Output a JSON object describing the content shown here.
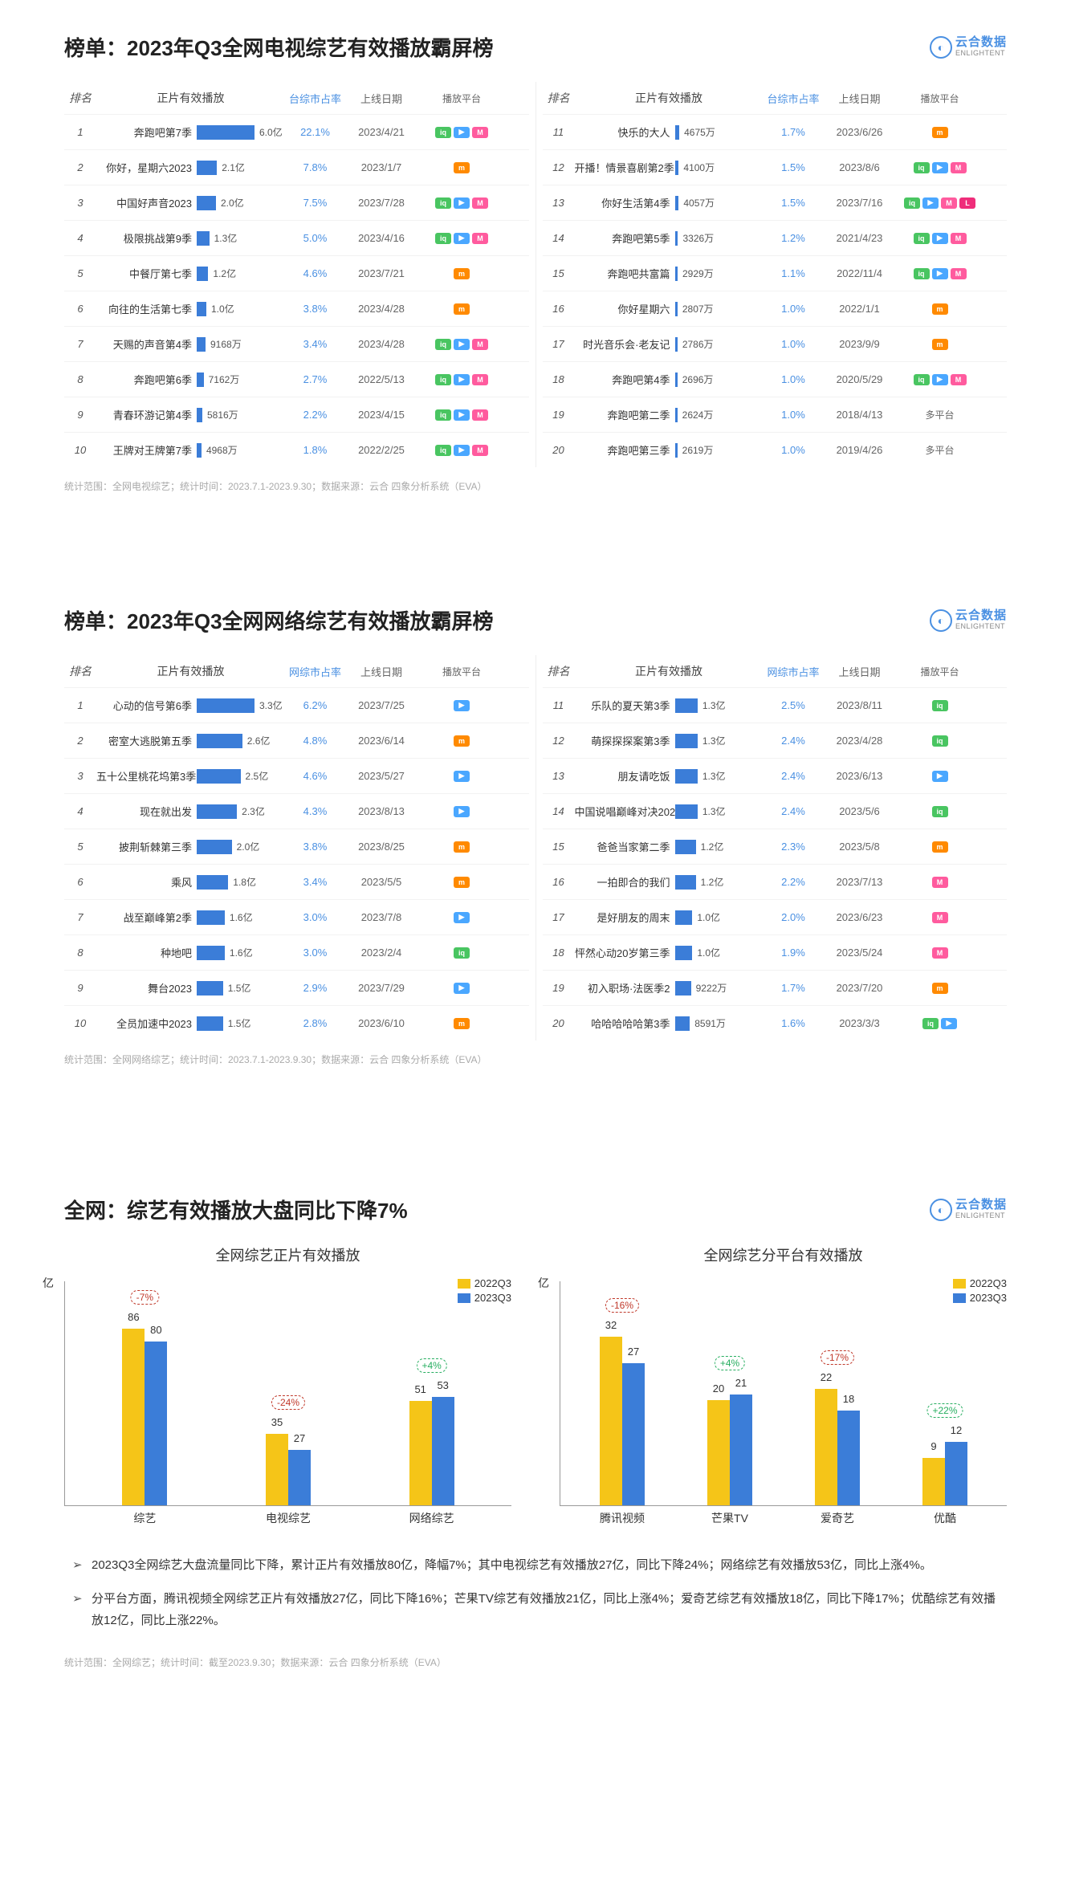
{
  "logo": {
    "cn": "云合数据",
    "en": "ENLIGHTENT"
  },
  "platforms": {
    "iqiyi": {
      "color": "#49c561",
      "glyph": "iq"
    },
    "tencent": {
      "color": "#4aa7ff",
      "glyph": "▶"
    },
    "mgtv": {
      "color": "#ff8a00",
      "glyph": "m"
    },
    "youku": {
      "color": "#26d0ce",
      "glyph": "▶"
    },
    "migu": {
      "color": "#ff5b9e",
      "glyph": "M"
    },
    "ltv": {
      "color": "#ef2d7a",
      "glyph": "L"
    }
  },
  "colors": {
    "bar_blue": "#3b7dd8",
    "accent_link": "#4a90e2",
    "chart_yellow": "#f5c518",
    "chart_blue": "#3b7dd8",
    "delta_neg": "#c0392b",
    "delta_pos": "#27ae60"
  },
  "table1": {
    "title_prefix": "榜单：",
    "title": "2023年Q3全网电视综艺有效播放霸屏榜",
    "headers": [
      "排名",
      "正片有效播放",
      "台综市占率",
      "上线日期",
      "播放平台"
    ],
    "max_value": 6.0,
    "rows_left": [
      {
        "rank": 1,
        "name": "奔跑吧第7季",
        "value": 6.0,
        "unit": "亿",
        "share": "22.1%",
        "date": "2023/4/21",
        "plat": [
          "iqiyi",
          "tencent",
          "migu"
        ]
      },
      {
        "rank": 2,
        "name": "你好，星期六2023",
        "value": 2.1,
        "unit": "亿",
        "share": "7.8%",
        "date": "2023/1/7",
        "plat": [
          "mgtv"
        ]
      },
      {
        "rank": 3,
        "name": "中国好声音2023",
        "value": 2.0,
        "unit": "亿",
        "share": "7.5%",
        "date": "2023/7/28",
        "plat": [
          "iqiyi",
          "tencent",
          "migu"
        ]
      },
      {
        "rank": 4,
        "name": "极限挑战第9季",
        "value": 1.3,
        "unit": "亿",
        "share": "5.0%",
        "date": "2023/4/16",
        "plat": [
          "iqiyi",
          "tencent",
          "migu"
        ]
      },
      {
        "rank": 5,
        "name": "中餐厅第七季",
        "value": 1.2,
        "unit": "亿",
        "share": "4.6%",
        "date": "2023/7/21",
        "plat": [
          "mgtv"
        ]
      },
      {
        "rank": 6,
        "name": "向往的生活第七季",
        "value": 1.0,
        "unit": "亿",
        "share": "3.8%",
        "date": "2023/4/28",
        "plat": [
          "mgtv"
        ]
      },
      {
        "rank": 7,
        "name": "天赐的声音第4季",
        "value": 0.9168,
        "label": "9168万",
        "share": "3.4%",
        "date": "2023/4/28",
        "plat": [
          "iqiyi",
          "tencent",
          "migu"
        ]
      },
      {
        "rank": 8,
        "name": "奔跑吧第6季",
        "value": 0.7162,
        "label": "7162万",
        "share": "2.7%",
        "date": "2022/5/13",
        "plat": [
          "iqiyi",
          "tencent",
          "migu"
        ]
      },
      {
        "rank": 9,
        "name": "青春环游记第4季",
        "value": 0.5816,
        "label": "5816万",
        "share": "2.2%",
        "date": "2023/4/15",
        "plat": [
          "iqiyi",
          "tencent",
          "migu"
        ]
      },
      {
        "rank": 10,
        "name": "王牌对王牌第7季",
        "value": 0.4968,
        "label": "4968万",
        "share": "1.8%",
        "date": "2022/2/25",
        "plat": [
          "iqiyi",
          "tencent",
          "migu"
        ]
      }
    ],
    "rows_right": [
      {
        "rank": 11,
        "name": "快乐的大人",
        "value": 0.4675,
        "label": "4675万",
        "share": "1.7%",
        "date": "2023/6/26",
        "plat": [
          "mgtv"
        ]
      },
      {
        "rank": 12,
        "name": "开播！情景喜剧第2季",
        "value": 0.41,
        "label": "4100万",
        "share": "1.5%",
        "date": "2023/8/6",
        "plat": [
          "iqiyi",
          "tencent",
          "migu"
        ]
      },
      {
        "rank": 13,
        "name": "你好生活第4季",
        "value": 0.4057,
        "label": "4057万",
        "share": "1.5%",
        "date": "2023/7/16",
        "plat": [
          "iqiyi",
          "tencent",
          "migu",
          "ltv"
        ]
      },
      {
        "rank": 14,
        "name": "奔跑吧第5季",
        "value": 0.3326,
        "label": "3326万",
        "share": "1.2%",
        "date": "2021/4/23",
        "plat": [
          "iqiyi",
          "tencent",
          "migu"
        ]
      },
      {
        "rank": 15,
        "name": "奔跑吧共富篇",
        "value": 0.2929,
        "label": "2929万",
        "share": "1.1%",
        "date": "2022/11/4",
        "plat": [
          "iqiyi",
          "tencent",
          "migu"
        ]
      },
      {
        "rank": 16,
        "name": "你好星期六",
        "value": 0.2807,
        "label": "2807万",
        "share": "1.0%",
        "date": "2022/1/1",
        "plat": [
          "mgtv"
        ]
      },
      {
        "rank": 17,
        "name": "时光音乐会·老友记",
        "value": 0.2786,
        "label": "2786万",
        "share": "1.0%",
        "date": "2023/9/9",
        "plat": [
          "mgtv"
        ]
      },
      {
        "rank": 18,
        "name": "奔跑吧第4季",
        "value": 0.2696,
        "label": "2696万",
        "share": "1.0%",
        "date": "2020/5/29",
        "plat": [
          "iqiyi",
          "tencent",
          "migu"
        ]
      },
      {
        "rank": 19,
        "name": "奔跑吧第二季",
        "value": 0.2624,
        "label": "2624万",
        "share": "1.0%",
        "date": "2018/4/13",
        "plat_text": "多平台"
      },
      {
        "rank": 20,
        "name": "奔跑吧第三季",
        "value": 0.2619,
        "label": "2619万",
        "share": "1.0%",
        "date": "2019/4/26",
        "plat_text": "多平台"
      }
    ],
    "footnote": "统计范围：全网电视综艺；统计时间：2023.7.1-2023.9.30；数据来源：云合 四象分析系统（EVA）"
  },
  "table2": {
    "title_prefix": "榜单：",
    "title": "2023年Q3全网网络综艺有效播放霸屏榜",
    "headers": [
      "排名",
      "正片有效播放",
      "网综市占率",
      "上线日期",
      "播放平台"
    ],
    "max_value": 3.3,
    "rows_left": [
      {
        "rank": 1,
        "name": "心动的信号第6季",
        "value": 3.3,
        "unit": "亿",
        "share": "6.2%",
        "date": "2023/7/25",
        "plat": [
          "tencent"
        ]
      },
      {
        "rank": 2,
        "name": "密室大逃脱第五季",
        "value": 2.6,
        "unit": "亿",
        "share": "4.8%",
        "date": "2023/6/14",
        "plat": [
          "mgtv"
        ]
      },
      {
        "rank": 3,
        "name": "五十公里桃花坞第3季",
        "value": 2.5,
        "unit": "亿",
        "share": "4.6%",
        "date": "2023/5/27",
        "plat": [
          "tencent"
        ]
      },
      {
        "rank": 4,
        "name": "现在就出发",
        "value": 2.3,
        "unit": "亿",
        "share": "4.3%",
        "date": "2023/8/13",
        "plat": [
          "tencent"
        ]
      },
      {
        "rank": 5,
        "name": "披荆斩棘第三季",
        "value": 2.0,
        "unit": "亿",
        "share": "3.8%",
        "date": "2023/8/25",
        "plat": [
          "mgtv"
        ]
      },
      {
        "rank": 6,
        "name": "乘风",
        "value": 1.8,
        "unit": "亿",
        "share": "3.4%",
        "date": "2023/5/5",
        "plat": [
          "mgtv"
        ]
      },
      {
        "rank": 7,
        "name": "战至巅峰第2季",
        "value": 1.6,
        "unit": "亿",
        "share": "3.0%",
        "date": "2023/7/8",
        "plat": [
          "tencent"
        ]
      },
      {
        "rank": 8,
        "name": "种地吧",
        "value": 1.6,
        "unit": "亿",
        "share": "3.0%",
        "date": "2023/2/4",
        "plat": [
          "iqiyi"
        ]
      },
      {
        "rank": 9,
        "name": "舞台2023",
        "value": 1.5,
        "unit": "亿",
        "share": "2.9%",
        "date": "2023/7/29",
        "plat": [
          "tencent"
        ]
      },
      {
        "rank": 10,
        "name": "全员加速中2023",
        "value": 1.5,
        "unit": "亿",
        "share": "2.8%",
        "date": "2023/6/10",
        "plat": [
          "mgtv"
        ]
      }
    ],
    "rows_right": [
      {
        "rank": 11,
        "name": "乐队的夏天第3季",
        "value": 1.3,
        "unit": "亿",
        "share": "2.5%",
        "date": "2023/8/11",
        "plat": [
          "iqiyi"
        ]
      },
      {
        "rank": 12,
        "name": "萌探探探案第3季",
        "value": 1.3,
        "unit": "亿",
        "share": "2.4%",
        "date": "2023/4/28",
        "plat": [
          "iqiyi"
        ]
      },
      {
        "rank": 13,
        "name": "朋友请吃饭",
        "value": 1.3,
        "unit": "亿",
        "share": "2.4%",
        "date": "2023/6/13",
        "plat": [
          "tencent"
        ]
      },
      {
        "rank": 14,
        "name": "中国说唱巅峰对决2023",
        "value": 1.3,
        "unit": "亿",
        "share": "2.4%",
        "date": "2023/5/6",
        "plat": [
          "iqiyi"
        ]
      },
      {
        "rank": 15,
        "name": "爸爸当家第二季",
        "value": 1.2,
        "unit": "亿",
        "share": "2.3%",
        "date": "2023/5/8",
        "plat": [
          "mgtv"
        ]
      },
      {
        "rank": 16,
        "name": "一拍即合的我们",
        "value": 1.2,
        "unit": "亿",
        "share": "2.2%",
        "date": "2023/7/13",
        "plat": [
          "migu"
        ]
      },
      {
        "rank": 17,
        "name": "是好朋友的周末",
        "value": 1.0,
        "unit": "亿",
        "share": "2.0%",
        "date": "2023/6/23",
        "plat": [
          "migu"
        ]
      },
      {
        "rank": 18,
        "name": "怦然心动20岁第三季",
        "value": 1.0,
        "unit": "亿",
        "share": "1.9%",
        "date": "2023/5/24",
        "plat": [
          "migu"
        ]
      },
      {
        "rank": 19,
        "name": "初入职场·法医季2",
        "value": 0.9222,
        "label": "9222万",
        "share": "1.7%",
        "date": "2023/7/20",
        "plat": [
          "mgtv"
        ]
      },
      {
        "rank": 20,
        "name": "哈哈哈哈哈第3季",
        "value": 0.8591,
        "label": "8591万",
        "share": "1.6%",
        "date": "2023/3/3",
        "plat": [
          "iqiyi",
          "tencent"
        ]
      }
    ],
    "footnote": "统计范围：全网网络综艺；统计时间：2023.7.1-2023.9.30；数据来源：云合 四象分析系统（EVA）"
  },
  "chart_section": {
    "title_prefix": "全网：",
    "title": "综艺有效播放大盘同比下降7%",
    "legend": [
      "2022Q3",
      "2023Q3"
    ],
    "y_unit": "亿",
    "max_y": 90,
    "chart1": {
      "subtitle": "全网综艺正片有效播放",
      "groups": [
        {
          "label": "综艺",
          "a": 86,
          "b": 80,
          "delta": "-7%",
          "delta_color": "neg"
        },
        {
          "label": "电视综艺",
          "a": 35,
          "b": 27,
          "delta": "-24%",
          "delta_color": "neg"
        },
        {
          "label": "网络综艺",
          "a": 51,
          "b": 53,
          "delta": "+4%",
          "delta_color": "pos"
        }
      ]
    },
    "chart2": {
      "subtitle": "全网综艺分平台有效播放",
      "max_y": 35,
      "groups": [
        {
          "label": "腾讯视频",
          "a": 32,
          "b": 27,
          "delta": "-16%",
          "delta_color": "neg"
        },
        {
          "label": "芒果TV",
          "a": 20,
          "b": 21,
          "delta": "+4%",
          "delta_color": "pos"
        },
        {
          "label": "爱奇艺",
          "a": 22,
          "b": 18,
          "delta": "-17%",
          "delta_color": "neg"
        },
        {
          "label": "优酷",
          "a": 9,
          "b": 12,
          "delta": "+22%",
          "delta_color": "pos"
        }
      ]
    },
    "bullets": [
      "2023Q3全网综艺大盘流量同比下降，累计正片有效播放80亿，降幅7%；其中电视综艺有效播放27亿，同比下降24%；网络综艺有效播放53亿，同比上涨4%。",
      "分平台方面，腾讯视频全网综艺正片有效播放27亿，同比下降16%；芒果TV综艺有效播放21亿，同比上涨4%；爱奇艺综艺有效播放18亿，同比下降17%；优酷综艺有效播放12亿，同比上涨22%。"
    ],
    "footnote": "统计范围：全网综艺；统计时间：截至2023.9.30；数据来源：云合 四象分析系统（EVA）"
  }
}
